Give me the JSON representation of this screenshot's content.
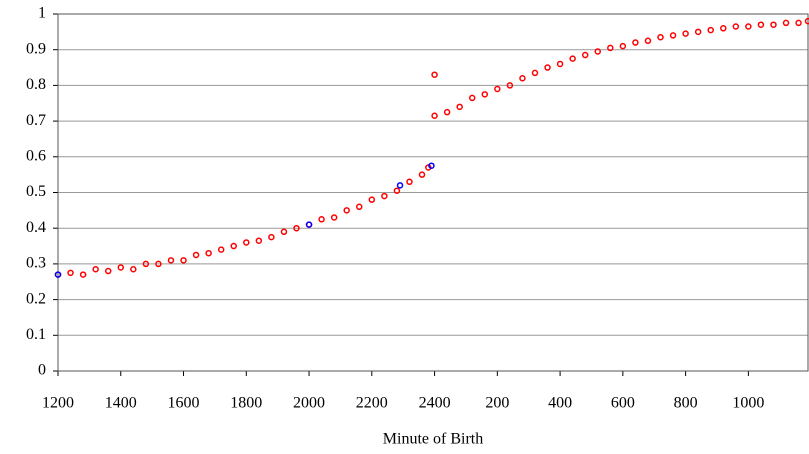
{
  "chart_data": {
    "type": "scatter",
    "x_label": "Minute of Birth",
    "xlim": [
      1200,
      3590
    ],
    "ylim": [
      0,
      1
    ],
    "xticks": [
      1200,
      1400,
      1600,
      1800,
      2000,
      2200,
      2400,
      {
        "value": 2600,
        "label": "200"
      },
      {
        "value": 2800,
        "label": "400"
      },
      {
        "value": 3000,
        "label": "600"
      },
      {
        "value": 3200,
        "label": "800"
      },
      {
        "value": 3400,
        "label": "1000"
      }
    ],
    "yticks": [
      0,
      0.1,
      0.2,
      0.3,
      0.4,
      0.5,
      0.6,
      0.7,
      0.8,
      0.9,
      1
    ],
    "grid": true,
    "series": [
      {
        "color": "#ff0000",
        "x": [
          1200,
          1240,
          1280,
          1320,
          1360,
          1400,
          1440,
          1480,
          1520,
          1560,
          1600,
          1640,
          1680,
          1720,
          1760,
          1800,
          1840,
          1880,
          1920,
          1960,
          2000,
          2040,
          2080,
          2120,
          2160,
          2200,
          2240,
          2280,
          2320,
          2360,
          2380,
          2400,
          2440,
          2480,
          2520,
          2560,
          2600,
          2640,
          2680,
          2720,
          2760,
          2800,
          2840,
          2880,
          2920,
          2960,
          3000,
          3040,
          3080,
          3120,
          3160,
          3200,
          3240,
          3280,
          3320,
          3360,
          3400,
          3440,
          3480,
          3520,
          3560,
          3590,
          2400
        ],
        "values": [
          0.27,
          0.275,
          0.27,
          0.285,
          0.28,
          0.29,
          0.285,
          0.3,
          0.3,
          0.31,
          0.31,
          0.325,
          0.33,
          0.34,
          0.35,
          0.36,
          0.365,
          0.375,
          0.39,
          0.4,
          0.41,
          0.425,
          0.43,
          0.45,
          0.46,
          0.48,
          0.49,
          0.505,
          0.53,
          0.55,
          0.57,
          0.715,
          0.725,
          0.74,
          0.765,
          0.775,
          0.79,
          0.8,
          0.82,
          0.835,
          0.85,
          0.86,
          0.875,
          0.885,
          0.895,
          0.905,
          0.91,
          0.92,
          0.925,
          0.935,
          0.94,
          0.945,
          0.95,
          0.955,
          0.96,
          0.965,
          0.965,
          0.97,
          0.97,
          0.975,
          0.975,
          0.98,
          0.83
        ]
      },
      {
        "color": "#0000ff",
        "x": [
          1200,
          2000,
          2290,
          2390
        ],
        "values": [
          0.27,
          0.41,
          0.52,
          0.575
        ]
      }
    ]
  }
}
